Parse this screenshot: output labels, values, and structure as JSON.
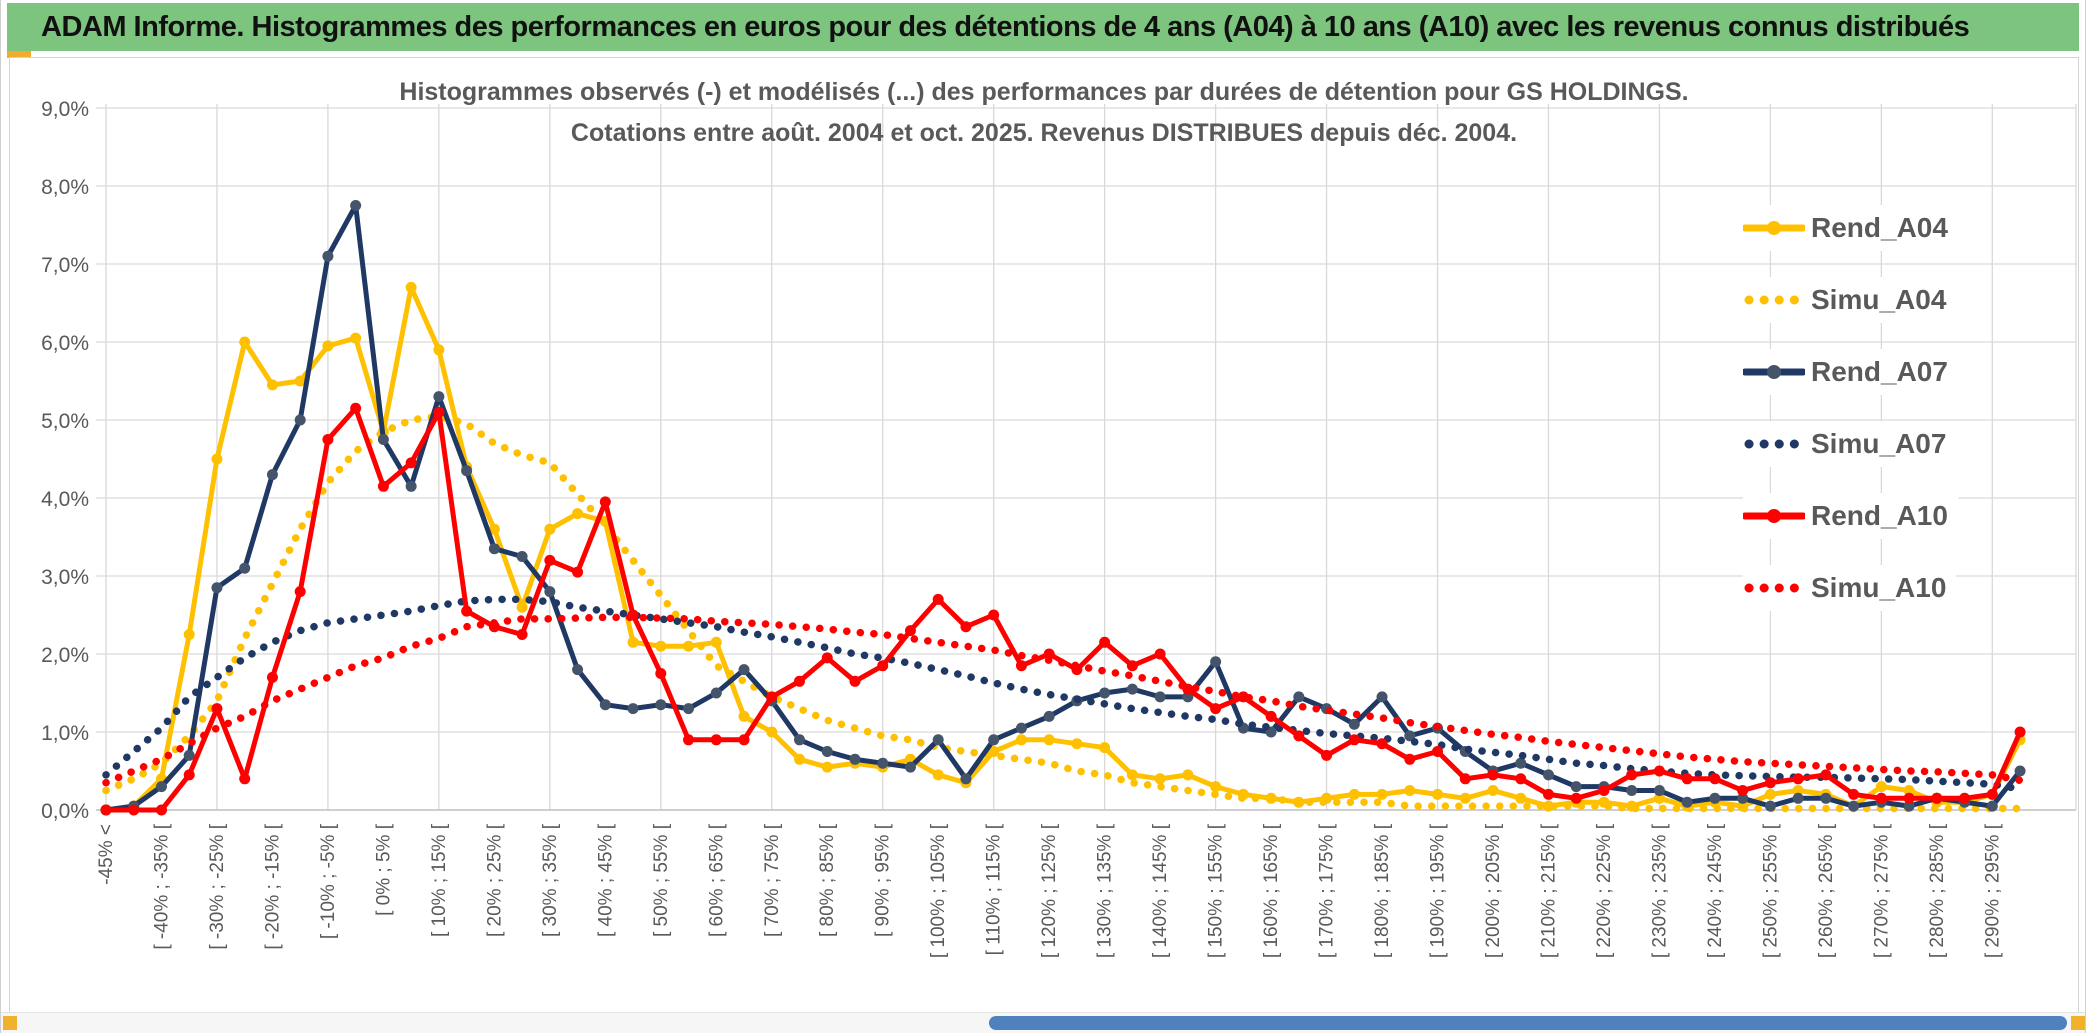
{
  "window": {
    "header_title": "ADAM Informe. Histogrammes des performances en euros pour des détentions de 4 ans (A04) à 10 ans (A10) avec les revenus connus distribués"
  },
  "chart": {
    "title_line1": "Histogrammes observés (-) et modélisés (...) des performances par durées de détention pour GS HOLDINGS.",
    "title_line2": "Cotations entre août. 2004 et oct. 2025. Revenus DISTRIBUES depuis déc. 2004."
  },
  "colors": {
    "gold": "#FFC000",
    "navy": "#1F3864",
    "navy_marker": "#44546A",
    "red": "#FF0000",
    "grid": "#D9D9D9",
    "axis_line": "#BFBFBF",
    "axis_text": "#595959",
    "header_green": "#7DC47E",
    "scroll_thumb_blue": "#4F81BD",
    "scroll_corner_amber": "#F0B12D"
  },
  "chart_data": {
    "type": "line",
    "title": "Histogrammes observés (-) et modélisés (...) des performances par durées de détention pour GS HOLDINGS. Cotations entre août. 2004 et oct. 2025. Revenus DISTRIBUES depuis déc. 2004.",
    "xlabel": "",
    "ylabel": "",
    "ylim": [
      0,
      9
    ],
    "grid": true,
    "legend_position": "right",
    "y_tick_labels": [
      "0,0%",
      "1,0%",
      "2,0%",
      "3,0%",
      "4,0%",
      "5,0%",
      "6,0%",
      "7,0%",
      "8,0%",
      "9,0%"
    ],
    "categories": [
      "-45% <",
      "",
      "[ -40% ; -35% [",
      "",
      "[ -30% ; -25% [",
      "",
      "[ -20% ; -15% [",
      "",
      "[ -10% ; -5% [",
      "",
      "[ 0% ; 5% [",
      "",
      "[ 10% ; 15% [",
      "",
      "[ 20% ; 25% [",
      "",
      "[ 30% ; 35% [",
      "",
      "[ 40% ; 45% [",
      "",
      "[ 50% ; 55% [",
      "",
      "[ 60% ; 65% [",
      "",
      "[ 70% ; 75% [",
      "",
      "[ 80% ; 85% [",
      "",
      "[ 90% ; 95% [",
      "",
      "[ 100% ; 105% [",
      "",
      "[ 110% ; 115% [",
      "",
      "[ 120% ; 125% [",
      "",
      "[ 130% ; 135% [",
      "",
      "[ 140% ; 145% [",
      "",
      "[ 150% ; 155% [",
      "",
      "[ 160% ; 165% [",
      "",
      "[ 170% ; 175% [",
      "",
      "[ 180% ; 185% [",
      "",
      "[ 190% ; 195% [",
      "",
      "[ 200% ; 205% [",
      "",
      "[ 210% ; 215% [",
      "",
      "[ 220% ; 225% [",
      "",
      "[ 230% ; 235% [",
      "",
      "[ 240% ; 245% [",
      "",
      "[ 250% ; 255% [",
      "",
      "[ 260% ; 265% [",
      "",
      "[ 270% ; 275% [",
      "",
      "[ 280% ; 285% [",
      "",
      "[ 290% ; 295% [",
      ""
    ],
    "series": [
      {
        "name": "Rend_A04",
        "style": "solid",
        "color": "#FFC000",
        "marker_color": "#FFC000",
        "values": [
          0,
          0.05,
          0.4,
          2.25,
          4.5,
          6.0,
          5.45,
          5.5,
          5.95,
          6.05,
          4.85,
          6.7,
          5.9,
          4.4,
          3.6,
          2.6,
          3.6,
          3.8,
          3.7,
          2.15,
          2.1,
          2.1,
          2.15,
          1.2,
          1.0,
          0.65,
          0.55,
          0.6,
          0.55,
          0.65,
          0.45,
          0.35,
          0.75,
          0.9,
          0.9,
          0.85,
          0.8,
          0.45,
          0.4,
          0.45,
          0.3,
          0.2,
          0.15,
          0.1,
          0.15,
          0.2,
          0.2,
          0.25,
          0.2,
          0.15,
          0.25,
          0.15,
          0.05,
          0.1,
          0.1,
          0.05,
          0.15,
          0.05,
          0.1,
          0.05,
          0.2,
          0.25,
          0.2,
          0.05,
          0.3,
          0.25,
          0.1,
          0.1,
          0.2,
          0.9
        ]
      },
      {
        "name": "Simu_A04",
        "style": "dotted",
        "color": "#FFC000",
        "values": [
          0.25,
          0.4,
          0.6,
          0.95,
          1.4,
          2.2,
          2.9,
          3.6,
          4.2,
          4.6,
          4.85,
          5.0,
          5.05,
          4.95,
          4.7,
          4.55,
          4.45,
          4.05,
          3.65,
          3.2,
          2.75,
          2.3,
          1.85,
          1.65,
          1.45,
          1.3,
          1.15,
          1.05,
          0.95,
          0.9,
          0.8,
          0.75,
          0.7,
          0.65,
          0.6,
          0.5,
          0.45,
          0.35,
          0.3,
          0.25,
          0.2,
          0.15,
          0.15,
          0.1,
          0.1,
          0.1,
          0.1,
          0.05,
          0.05,
          0.05,
          0.05,
          0.05,
          0.05,
          0.05,
          0.05,
          0.02,
          0.02,
          0.02,
          0.02,
          0.02,
          0.02,
          0.02,
          0.02,
          0.02,
          0.02,
          0.02,
          0.02,
          0.02,
          0.02,
          0.02
        ]
      },
      {
        "name": "Rend_A07",
        "style": "solid",
        "color": "#1F3864",
        "marker_color": "#44546A",
        "values": [
          0,
          0.05,
          0.3,
          0.7,
          2.85,
          3.1,
          4.3,
          5.0,
          7.1,
          7.75,
          4.75,
          4.15,
          5.3,
          4.35,
          3.35,
          3.25,
          2.8,
          1.8,
          1.35,
          1.3,
          1.35,
          1.3,
          1.5,
          1.8,
          1.4,
          0.9,
          0.75,
          0.65,
          0.6,
          0.55,
          0.9,
          0.4,
          0.9,
          1.05,
          1.2,
          1.4,
          1.5,
          1.55,
          1.45,
          1.45,
          1.9,
          1.05,
          1.0,
          1.45,
          1.3,
          1.1,
          1.45,
          0.95,
          1.05,
          0.75,
          0.5,
          0.6,
          0.45,
          0.3,
          0.3,
          0.25,
          0.25,
          0.1,
          0.15,
          0.15,
          0.05,
          0.15,
          0.15,
          0.05,
          0.1,
          0.05,
          0.15,
          0.1,
          0.05,
          0.5
        ]
      },
      {
        "name": "Simu_A07",
        "style": "dotted",
        "color": "#1F3864",
        "values": [
          0.45,
          0.75,
          1.05,
          1.45,
          1.7,
          1.95,
          2.15,
          2.3,
          2.4,
          2.45,
          2.5,
          2.55,
          2.62,
          2.68,
          2.7,
          2.7,
          2.67,
          2.6,
          2.55,
          2.5,
          2.45,
          2.4,
          2.35,
          2.28,
          2.22,
          2.15,
          2.08,
          2.0,
          1.95,
          1.88,
          1.8,
          1.72,
          1.63,
          1.55,
          1.48,
          1.42,
          1.36,
          1.3,
          1.25,
          1.2,
          1.16,
          1.1,
          1.06,
          1.02,
          0.98,
          0.95,
          0.92,
          0.88,
          0.84,
          0.78,
          0.74,
          0.7,
          0.65,
          0.6,
          0.57,
          0.53,
          0.5,
          0.47,
          0.45,
          0.44,
          0.43,
          0.42,
          0.42,
          0.41,
          0.4,
          0.39,
          0.37,
          0.35,
          0.33,
          0.27
        ]
      },
      {
        "name": "Rend_A10",
        "style": "solid",
        "color": "#FF0000",
        "marker_color": "#FF0000",
        "values": [
          0,
          0,
          0,
          0.45,
          1.3,
          0.4,
          1.7,
          2.8,
          4.75,
          5.15,
          4.15,
          4.45,
          5.1,
          2.55,
          2.35,
          2.25,
          3.2,
          3.05,
          3.95,
          2.5,
          1.75,
          0.9,
          0.9,
          0.9,
          1.45,
          1.65,
          1.95,
          1.65,
          1.85,
          2.3,
          2.7,
          2.35,
          2.5,
          1.85,
          2.0,
          1.8,
          2.15,
          1.85,
          2.0,
          1.55,
          1.3,
          1.45,
          1.2,
          0.95,
          0.7,
          0.9,
          0.85,
          0.65,
          0.75,
          0.4,
          0.45,
          0.4,
          0.2,
          0.15,
          0.25,
          0.45,
          0.5,
          0.4,
          0.4,
          0.25,
          0.35,
          0.4,
          0.45,
          0.2,
          0.15,
          0.15,
          0.15,
          0.15,
          0.2,
          1.0
        ]
      },
      {
        "name": "Simu_A10",
        "style": "dotted",
        "color": "#FF0000",
        "values": [
          0.35,
          0.5,
          0.65,
          0.85,
          1.05,
          1.2,
          1.4,
          1.55,
          1.7,
          1.85,
          1.95,
          2.1,
          2.2,
          2.35,
          2.4,
          2.45,
          2.45,
          2.46,
          2.47,
          2.47,
          2.46,
          2.45,
          2.42,
          2.4,
          2.38,
          2.35,
          2.32,
          2.28,
          2.25,
          2.2,
          2.15,
          2.1,
          2.05,
          1.98,
          1.92,
          1.85,
          1.78,
          1.72,
          1.65,
          1.58,
          1.52,
          1.45,
          1.4,
          1.33,
          1.28,
          1.23,
          1.18,
          1.12,
          1.07,
          1.02,
          0.97,
          0.93,
          0.88,
          0.84,
          0.8,
          0.76,
          0.72,
          0.68,
          0.65,
          0.62,
          0.6,
          0.58,
          0.56,
          0.54,
          0.52,
          0.5,
          0.49,
          0.47,
          0.45,
          0.38
        ]
      }
    ]
  }
}
